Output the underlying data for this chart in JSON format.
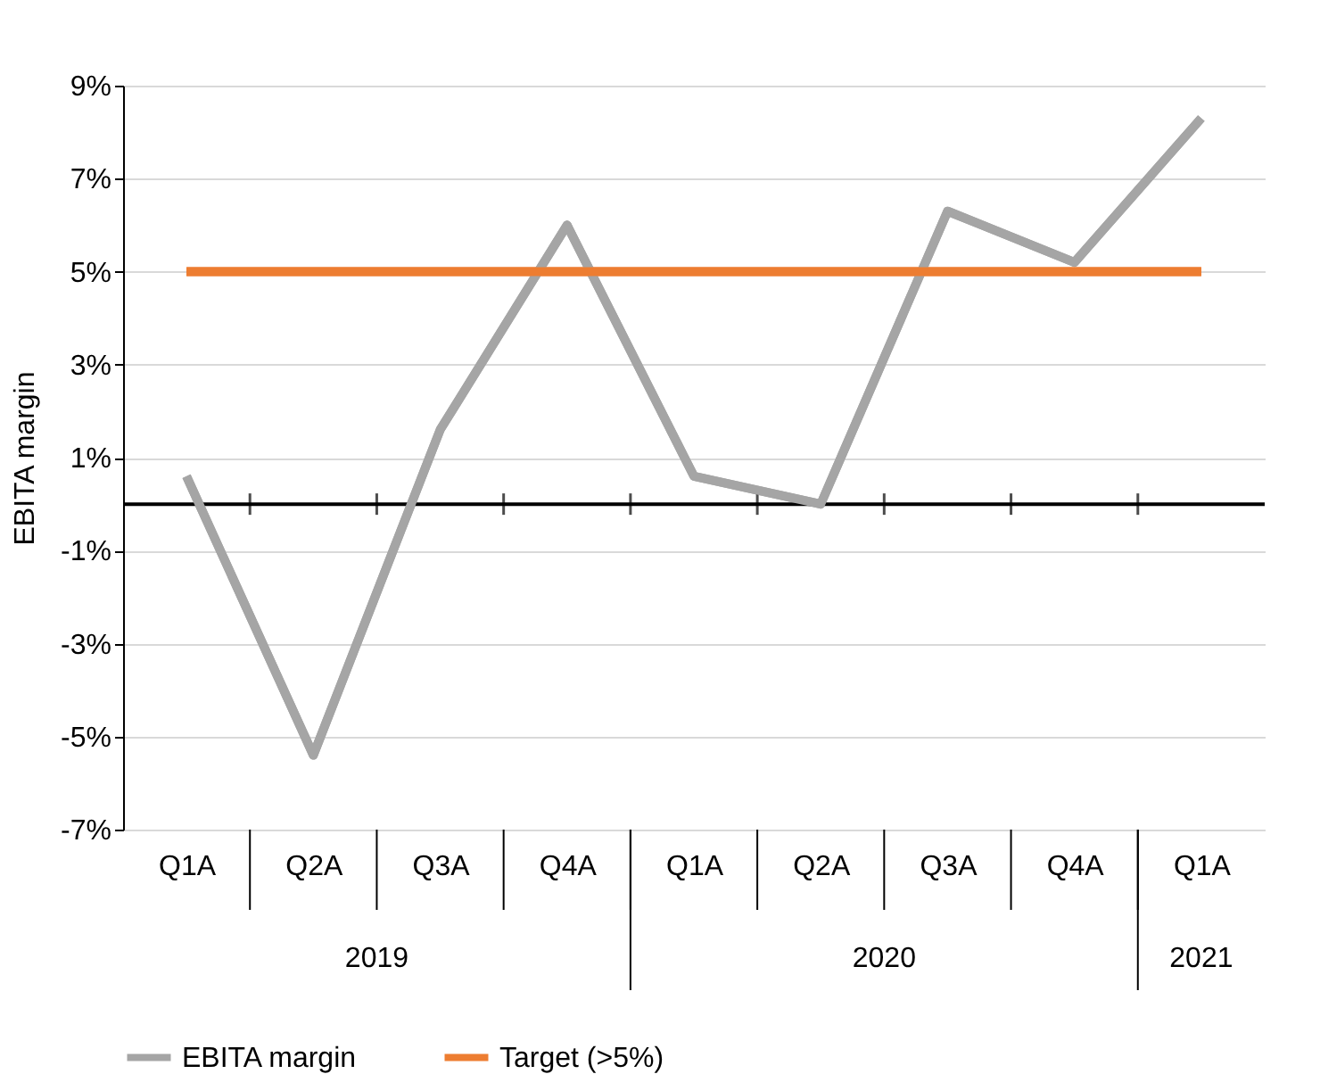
{
  "chart_data": {
    "type": "line",
    "ylabel": "EBITA margin",
    "categories": [
      "Q1A",
      "Q2A",
      "Q3A",
      "Q4A",
      "Q1A",
      "Q2A",
      "Q3A",
      "Q4A",
      "Q1A"
    ],
    "series": [
      {
        "name": "EBITA margin",
        "color": "#a5a5a5",
        "values": [
          0.6,
          -5.4,
          1.6,
          6.0,
          0.6,
          0.0,
          6.3,
          5.2,
          8.3
        ]
      },
      {
        "name": "Target (>5%)",
        "color": "#ed7d31",
        "values": [
          5,
          5,
          5,
          5,
          5,
          5,
          5,
          5,
          5
        ]
      }
    ],
    "annotations": [
      "2019",
      "2020",
      "2021"
    ],
    "ref_lines": [
      {
        "axis": "y",
        "value": 0,
        "color": "#000000"
      }
    ],
    "ylim": [
      -7,
      9
    ],
    "yticks": [
      {
        "value": 9,
        "label": "9%"
      },
      {
        "value": 7,
        "label": "7%"
      },
      {
        "value": 5,
        "label": "5%"
      },
      {
        "value": 3,
        "label": "3%"
      },
      {
        "value": 1,
        "label": "1%"
      },
      {
        "value": -1,
        "label": "-1%"
      },
      {
        "value": -3,
        "label": "-3%"
      },
      {
        "value": -5,
        "label": "-5%"
      },
      {
        "value": -7,
        "label": "-7%"
      }
    ],
    "grid": "y",
    "legend": "bottom",
    "marker": "none",
    "line_style": "solid"
  }
}
